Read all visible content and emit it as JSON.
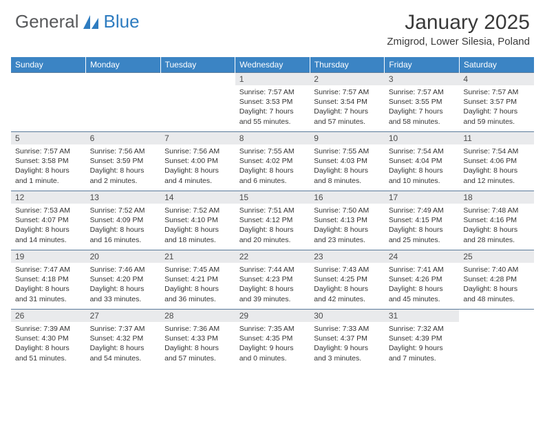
{
  "logo": {
    "part1": "General",
    "part2": "Blue"
  },
  "title": "January 2025",
  "location": "Zmigrod, Lower Silesia, Poland",
  "colors": {
    "header_bg": "#3b84c4",
    "header_text": "#ffffff",
    "daynum_bg": "#e9eaec",
    "row_border": "#5a7a9a",
    "logo_gray": "#58595b",
    "logo_blue": "#2e7cc0",
    "body_text": "#333333"
  },
  "weekdays": [
    "Sunday",
    "Monday",
    "Tuesday",
    "Wednesday",
    "Thursday",
    "Friday",
    "Saturday"
  ],
  "weeks": [
    [
      null,
      null,
      null,
      {
        "n": "1",
        "sr": "7:57 AM",
        "ss": "3:53 PM",
        "dl": "7 hours and 55 minutes."
      },
      {
        "n": "2",
        "sr": "7:57 AM",
        "ss": "3:54 PM",
        "dl": "7 hours and 57 minutes."
      },
      {
        "n": "3",
        "sr": "7:57 AM",
        "ss": "3:55 PM",
        "dl": "7 hours and 58 minutes."
      },
      {
        "n": "4",
        "sr": "7:57 AM",
        "ss": "3:57 PM",
        "dl": "7 hours and 59 minutes."
      }
    ],
    [
      {
        "n": "5",
        "sr": "7:57 AM",
        "ss": "3:58 PM",
        "dl": "8 hours and 1 minute."
      },
      {
        "n": "6",
        "sr": "7:56 AM",
        "ss": "3:59 PM",
        "dl": "8 hours and 2 minutes."
      },
      {
        "n": "7",
        "sr": "7:56 AM",
        "ss": "4:00 PM",
        "dl": "8 hours and 4 minutes."
      },
      {
        "n": "8",
        "sr": "7:55 AM",
        "ss": "4:02 PM",
        "dl": "8 hours and 6 minutes."
      },
      {
        "n": "9",
        "sr": "7:55 AM",
        "ss": "4:03 PM",
        "dl": "8 hours and 8 minutes."
      },
      {
        "n": "10",
        "sr": "7:54 AM",
        "ss": "4:04 PM",
        "dl": "8 hours and 10 minutes."
      },
      {
        "n": "11",
        "sr": "7:54 AM",
        "ss": "4:06 PM",
        "dl": "8 hours and 12 minutes."
      }
    ],
    [
      {
        "n": "12",
        "sr": "7:53 AM",
        "ss": "4:07 PM",
        "dl": "8 hours and 14 minutes."
      },
      {
        "n": "13",
        "sr": "7:52 AM",
        "ss": "4:09 PM",
        "dl": "8 hours and 16 minutes."
      },
      {
        "n": "14",
        "sr": "7:52 AM",
        "ss": "4:10 PM",
        "dl": "8 hours and 18 minutes."
      },
      {
        "n": "15",
        "sr": "7:51 AM",
        "ss": "4:12 PM",
        "dl": "8 hours and 20 minutes."
      },
      {
        "n": "16",
        "sr": "7:50 AM",
        "ss": "4:13 PM",
        "dl": "8 hours and 23 minutes."
      },
      {
        "n": "17",
        "sr": "7:49 AM",
        "ss": "4:15 PM",
        "dl": "8 hours and 25 minutes."
      },
      {
        "n": "18",
        "sr": "7:48 AM",
        "ss": "4:16 PM",
        "dl": "8 hours and 28 minutes."
      }
    ],
    [
      {
        "n": "19",
        "sr": "7:47 AM",
        "ss": "4:18 PM",
        "dl": "8 hours and 31 minutes."
      },
      {
        "n": "20",
        "sr": "7:46 AM",
        "ss": "4:20 PM",
        "dl": "8 hours and 33 minutes."
      },
      {
        "n": "21",
        "sr": "7:45 AM",
        "ss": "4:21 PM",
        "dl": "8 hours and 36 minutes."
      },
      {
        "n": "22",
        "sr": "7:44 AM",
        "ss": "4:23 PM",
        "dl": "8 hours and 39 minutes."
      },
      {
        "n": "23",
        "sr": "7:43 AM",
        "ss": "4:25 PM",
        "dl": "8 hours and 42 minutes."
      },
      {
        "n": "24",
        "sr": "7:41 AM",
        "ss": "4:26 PM",
        "dl": "8 hours and 45 minutes."
      },
      {
        "n": "25",
        "sr": "7:40 AM",
        "ss": "4:28 PM",
        "dl": "8 hours and 48 minutes."
      }
    ],
    [
      {
        "n": "26",
        "sr": "7:39 AM",
        "ss": "4:30 PM",
        "dl": "8 hours and 51 minutes."
      },
      {
        "n": "27",
        "sr": "7:37 AM",
        "ss": "4:32 PM",
        "dl": "8 hours and 54 minutes."
      },
      {
        "n": "28",
        "sr": "7:36 AM",
        "ss": "4:33 PM",
        "dl": "8 hours and 57 minutes."
      },
      {
        "n": "29",
        "sr": "7:35 AM",
        "ss": "4:35 PM",
        "dl": "9 hours and 0 minutes."
      },
      {
        "n": "30",
        "sr": "7:33 AM",
        "ss": "4:37 PM",
        "dl": "9 hours and 3 minutes."
      },
      {
        "n": "31",
        "sr": "7:32 AM",
        "ss": "4:39 PM",
        "dl": "9 hours and 7 minutes."
      },
      null
    ]
  ],
  "labels": {
    "sunrise": "Sunrise:",
    "sunset": "Sunset:",
    "daylight": "Daylight:"
  }
}
